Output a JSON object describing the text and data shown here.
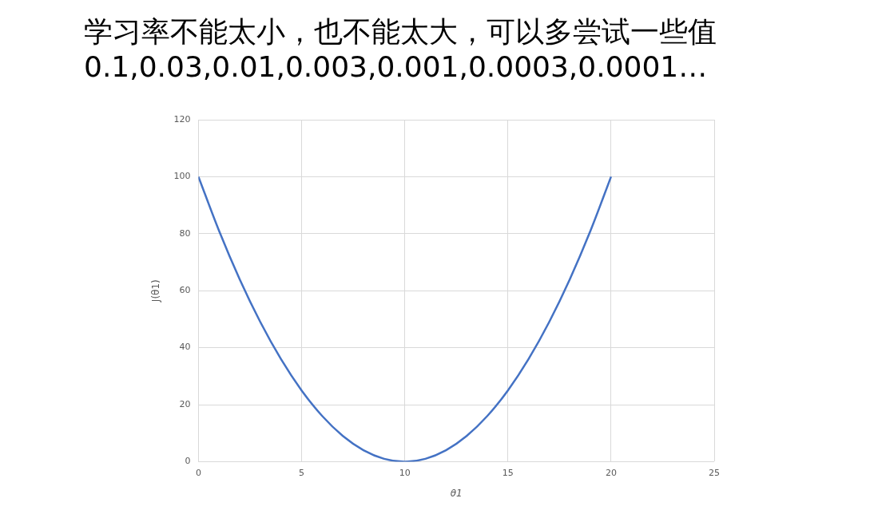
{
  "chart_data": {
    "type": "line",
    "title": "学习率不能太小，也不能太大，可以多尝试一些值",
    "subtitle": "0.1,0.03,0.01,0.003,0.001,0.0003,0.0001…",
    "xlabel": "θ1",
    "ylabel": "J(θ1)",
    "x": [
      0,
      1,
      2,
      3,
      4,
      5,
      6,
      7,
      8,
      9,
      10,
      11,
      12,
      13,
      14,
      15,
      16,
      17,
      18,
      19,
      20
    ],
    "series": [
      {
        "color": "#4472c4",
        "values": [
          100,
          81,
          64,
          49,
          36,
          25,
          16,
          9,
          4,
          1,
          0,
          1,
          4,
          9,
          16,
          25,
          36,
          49,
          64,
          81,
          100
        ]
      }
    ],
    "xlim": [
      0,
      25
    ],
    "xticks": [
      0,
      5,
      10,
      15,
      20,
      25
    ],
    "ylim": [
      0,
      120
    ],
    "yticks": [
      0,
      20,
      40,
      60,
      80,
      100,
      120
    ],
    "grid": true,
    "marker": "none",
    "line_style": "solid"
  }
}
